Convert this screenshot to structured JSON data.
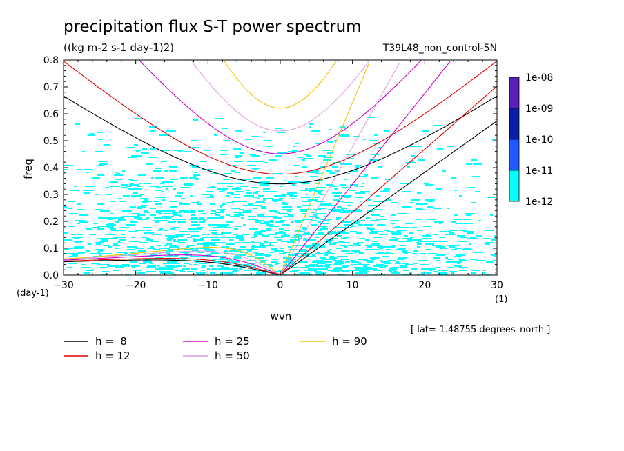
{
  "chart_data": {
    "type": "heatmap",
    "title": "precipitation flux S-T power spectrum",
    "subtitle": "((kg m-2 s-1 day-1)2)",
    "run_label": "T39L48_non_control-5N",
    "xlabel": "wvn",
    "ylabel": "freq",
    "x_unit": "(1)",
    "y_unit": "(day-1)",
    "xlim": [
      -30,
      30
    ],
    "ylim": [
      0,
      0.8
    ],
    "x_ticks": [
      "-30",
      "-20",
      "-10",
      "0",
      "10",
      "20",
      "30"
    ],
    "y_ticks": [
      "0.0",
      "0.1",
      "0.2",
      "0.3",
      "0.4",
      "0.5",
      "0.6",
      "0.7",
      "0.8"
    ],
    "grid": false,
    "footnote": "[ lat=-1.48755 degrees_north ]",
    "colorbar": {
      "labels": [
        "1e-08",
        "1e-09",
        "1e-10",
        "1e-11",
        "1e-12"
      ],
      "colors": [
        "#5a1fb8",
        "#0a1fa8",
        "#1e5aff",
        "#00ffff"
      ]
    },
    "heatmap_fill_color": "#00ffff",
    "dispersion_curves": [
      {
        "name": "h =  8",
        "h": 8,
        "color": "#000000"
      },
      {
        "name": "h = 12",
        "h": 12,
        "color": "#e00000"
      },
      {
        "name": "h = 25",
        "h": 25,
        "color": "#cc00cc"
      },
      {
        "name": "h = 50",
        "h": 50,
        "color": "#e0a0e0"
      },
      {
        "name": "h = 90",
        "h": 90,
        "color": "#f0c000"
      }
    ],
    "legend_placement": "bottom-left"
  }
}
